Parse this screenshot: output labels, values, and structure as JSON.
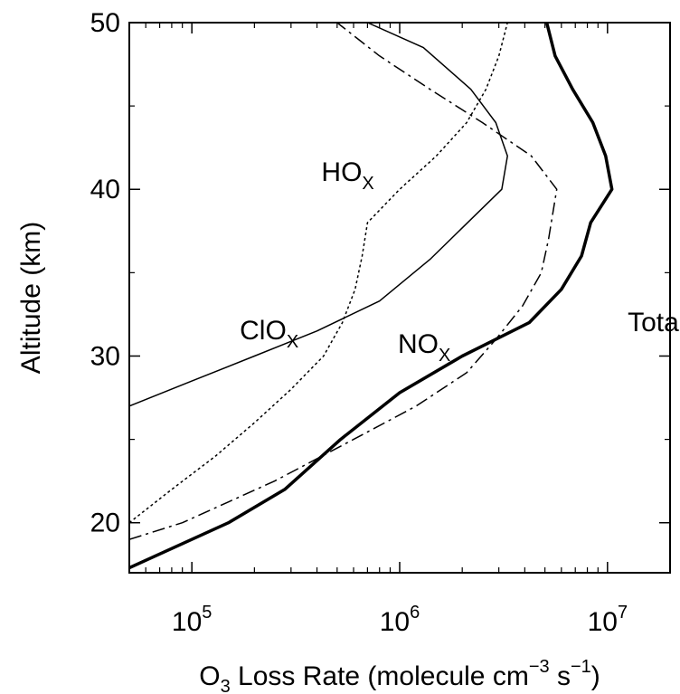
{
  "chart_data": {
    "type": "line",
    "xlabel": {
      "prefix": "O",
      "prefix_sub": "3",
      "main": " Loss Rate (molecule cm",
      "sup1": "−3",
      "mid": " s",
      "sup2": "−1",
      "suffix": ")"
    },
    "ylabel": "Altitude (km)",
    "x_scale": "log",
    "xlim": [
      50000,
      20000000
    ],
    "ylim": [
      17,
      50
    ],
    "x_ticks": [
      {
        "value": 100000,
        "base": "10",
        "exp": "5"
      },
      {
        "value": 1000000,
        "base": "10",
        "exp": "6"
      },
      {
        "value": 10000000,
        "base": "10",
        "exp": "7"
      }
    ],
    "y_ticks": [
      {
        "value": 20,
        "label": "20"
      },
      {
        "value": 30,
        "label": "30"
      },
      {
        "value": 40,
        "label": "40"
      },
      {
        "value": 50,
        "label": "50"
      }
    ],
    "y_minor_ticks": [
      25,
      35,
      45
    ],
    "grid": false,
    "series": [
      {
        "name": "Total",
        "style": "thick",
        "points": [
          [
            50000,
            17.3
          ],
          [
            150000,
            20
          ],
          [
            280000,
            22
          ],
          [
            520000,
            25
          ],
          [
            1000000,
            27.8
          ],
          [
            2000000,
            30
          ],
          [
            4200000,
            32
          ],
          [
            6000000,
            34
          ],
          [
            7500000,
            36
          ],
          [
            8300000,
            38
          ],
          [
            10500000,
            40
          ],
          [
            9800000,
            42
          ],
          [
            8500000,
            44
          ],
          [
            6800000,
            46
          ],
          [
            5600000,
            48
          ],
          [
            5100000,
            50
          ]
        ]
      },
      {
        "name": "HO",
        "sub": "X",
        "style": "dotted",
        "points": [
          [
            50000,
            20
          ],
          [
            80000,
            22
          ],
          [
            130000,
            24
          ],
          [
            200000,
            26
          ],
          [
            300000,
            28
          ],
          [
            430000,
            30
          ],
          [
            530000,
            32
          ],
          [
            610000,
            34
          ],
          [
            660000,
            36
          ],
          [
            700000,
            38
          ],
          [
            1000000,
            40
          ],
          [
            1500000,
            42
          ],
          [
            2100000,
            44
          ],
          [
            2600000,
            46
          ],
          [
            3000000,
            48
          ],
          [
            3300000,
            50
          ]
        ]
      },
      {
        "name": "NO",
        "sub": "X",
        "style": "dashdot",
        "points": [
          [
            50000,
            19
          ],
          [
            90000,
            20
          ],
          [
            250000,
            22.5
          ],
          [
            600000,
            25
          ],
          [
            1200000,
            27
          ],
          [
            2100000,
            29
          ],
          [
            2900000,
            31
          ],
          [
            3900000,
            33
          ],
          [
            4800000,
            35
          ],
          [
            5200000,
            37
          ],
          [
            5700000,
            40
          ],
          [
            4300000,
            42
          ],
          [
            2500000,
            44
          ],
          [
            1400000,
            46
          ],
          [
            800000,
            48
          ],
          [
            500000,
            50
          ]
        ]
      },
      {
        "name": "ClO",
        "sub": "X",
        "style": "thin",
        "points": [
          [
            50000,
            27
          ],
          [
            100000,
            28.5
          ],
          [
            200000,
            30
          ],
          [
            400000,
            31.5
          ],
          [
            800000,
            33.3
          ],
          [
            1400000,
            35.8
          ],
          [
            3100000,
            40
          ],
          [
            3300000,
            42
          ],
          [
            2900000,
            44
          ],
          [
            2200000,
            46
          ],
          [
            1300000,
            48.5
          ],
          [
            700000,
            50
          ]
        ]
      }
    ],
    "annotations": [
      {
        "text": "HO",
        "sub": "X",
        "anchor": [
          420000,
          40.5
        ]
      },
      {
        "text": "ClO",
        "sub": "X",
        "anchor": [
          170000,
          31
        ]
      },
      {
        "text": "NO",
        "sub": "X",
        "anchor": [
          980000,
          30.2
        ]
      },
      {
        "text": "Total",
        "sub": "",
        "anchor": [
          12500000,
          31.5
        ]
      }
    ]
  }
}
